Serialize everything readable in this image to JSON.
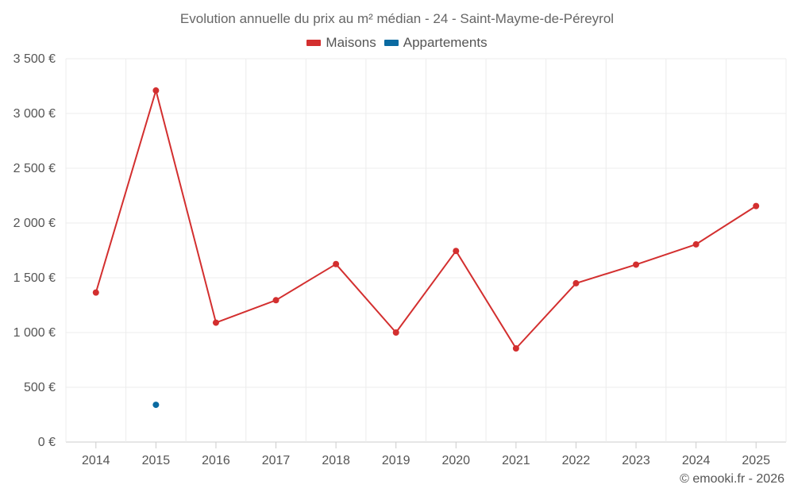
{
  "chart_data": {
    "type": "line",
    "title": "Evolution annuelle du prix au m² médian - 24 - Saint-Mayme-de-Péreyrol",
    "categories": [
      "2014",
      "2015",
      "2016",
      "2017",
      "2018",
      "2019",
      "2020",
      "2021",
      "2022",
      "2023",
      "2024",
      "2025"
    ],
    "series": [
      {
        "name": "Maisons",
        "color": "#d32f2f",
        "values": [
          1365,
          3210,
          1090,
          1295,
          1625,
          1000,
          1745,
          855,
          1450,
          1620,
          1805,
          2155
        ]
      },
      {
        "name": "Appartements",
        "color": "#0a6aa1",
        "values": [
          null,
          340,
          null,
          null,
          null,
          null,
          null,
          null,
          null,
          null,
          null,
          null
        ]
      }
    ],
    "ylim": [
      0,
      3500
    ],
    "yticks": [
      0,
      500,
      1000,
      1500,
      2000,
      2500,
      3000,
      3500
    ],
    "ytick_labels": [
      "0 €",
      "500 €",
      "1 000 €",
      "1 500 €",
      "2 000 €",
      "2 500 €",
      "3 000 €",
      "3 500 €"
    ],
    "grid": true,
    "legend_position": "top-center"
  },
  "credit": "© emooki.fr - 2026"
}
